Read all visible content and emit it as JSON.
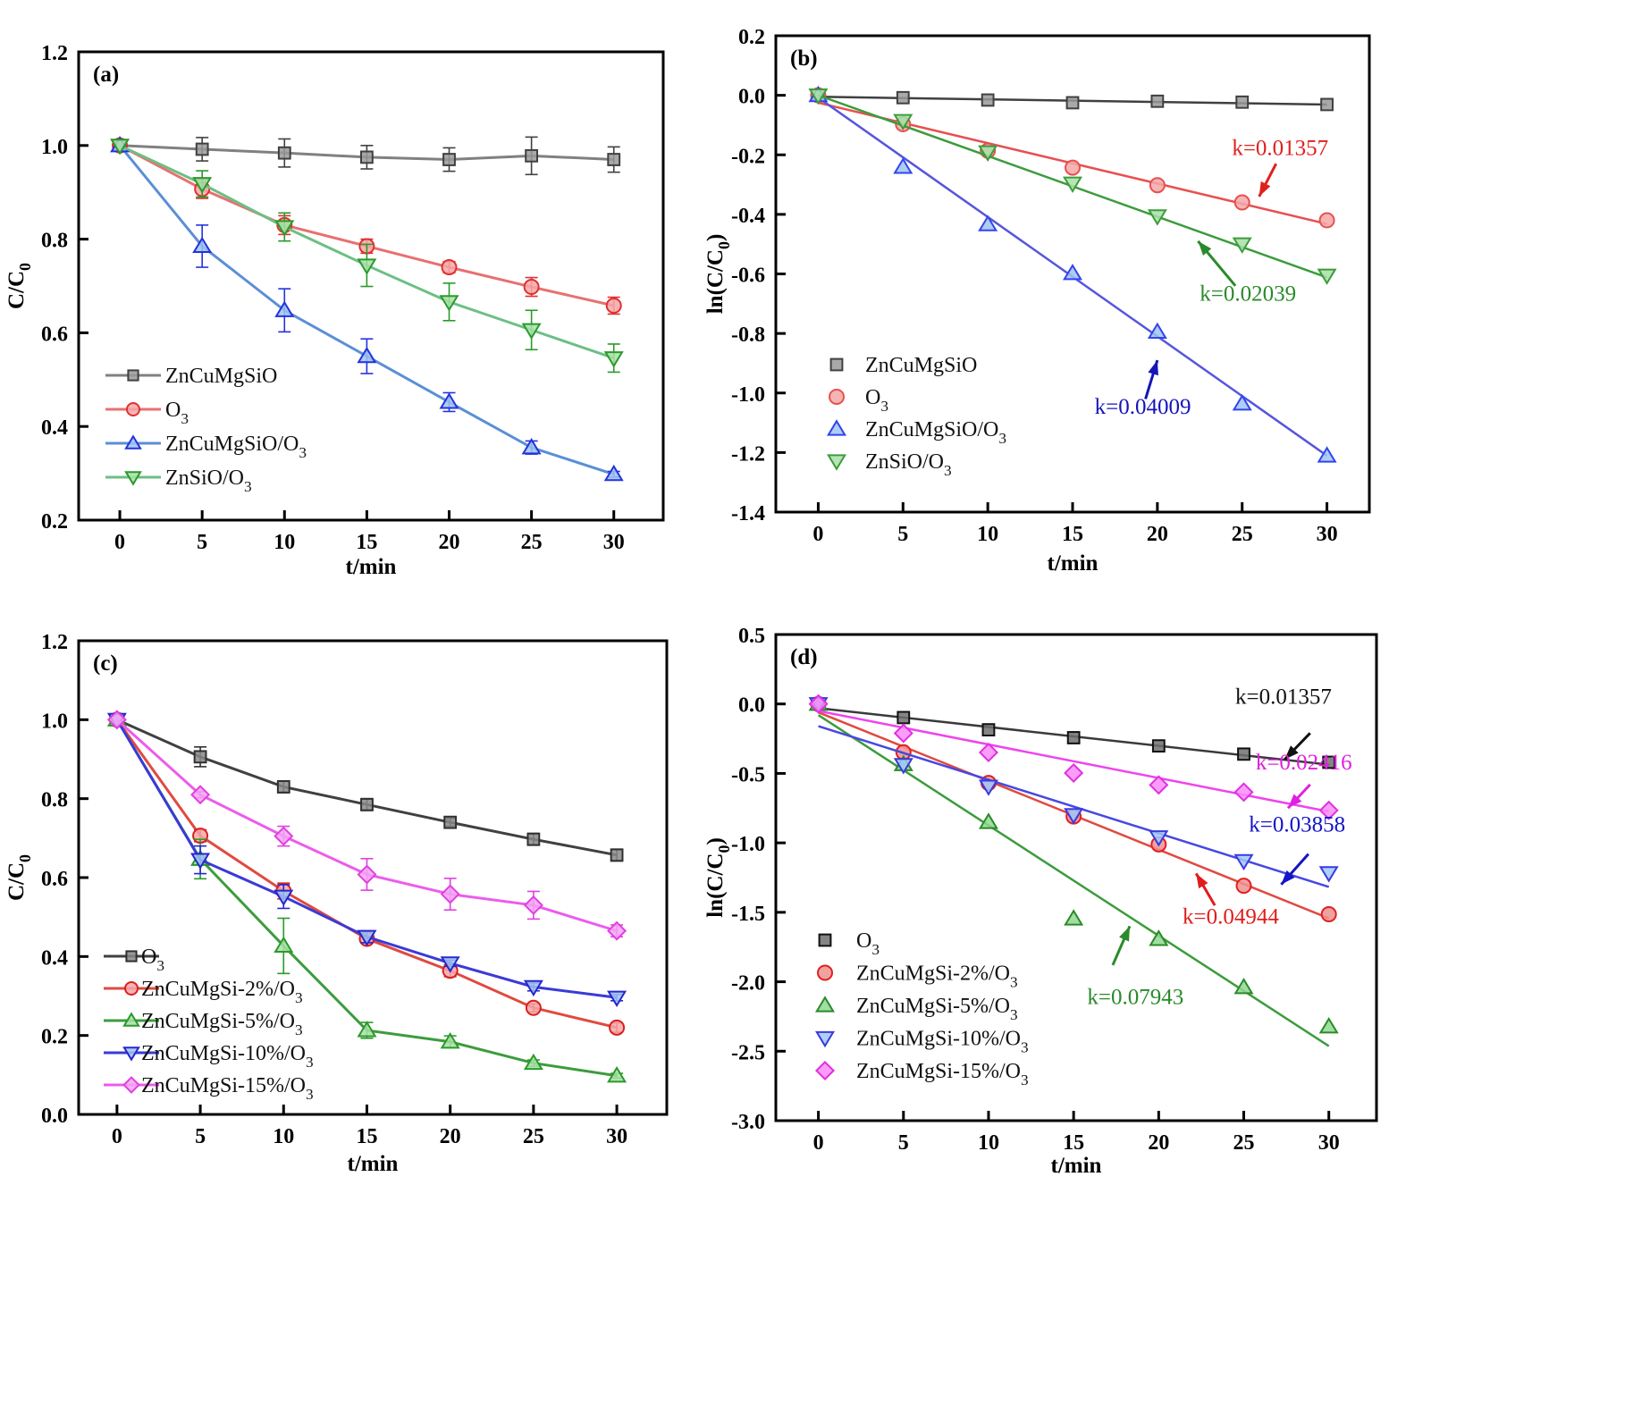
{
  "chart_data": [
    {
      "id": "a",
      "type": "line",
      "panel_label": "(a)",
      "title": "",
      "xlabel": "t/min",
      "ylabel": "C/C0",
      "ylabel_main": "C/C",
      "ylabel_sub": "0",
      "xlim": [
        -2.5,
        33
      ],
      "ylim": [
        0.2,
        1.2
      ],
      "xticks": [
        0,
        5,
        10,
        15,
        20,
        25,
        30
      ],
      "xtick_labels": [
        "0",
        "5",
        "10",
        "15",
        "20",
        "25",
        "30"
      ],
      "yticks": [
        0.2,
        0.4,
        0.6,
        0.8,
        1.0,
        1.2
      ],
      "ytick_labels": [
        "0.2",
        "0.4",
        "0.6",
        "0.8",
        "1.0",
        "1.2"
      ],
      "grid": false,
      "legend_position": "bottom-left",
      "legend_style": "line-marker",
      "x": [
        0,
        5,
        10,
        15,
        20,
        25,
        30
      ],
      "series": [
        {
          "name": "ZnCuMgSiO",
          "label_main": "ZnCuMgSiO",
          "label_sub": "",
          "marker": "square",
          "line_color": "#808080",
          "edge_color": "#404040",
          "fill_color": "#9a9a9a",
          "values": [
            1.0,
            0.992,
            0.984,
            0.975,
            0.97,
            0.978,
            0.97
          ],
          "errors": [
            0,
            0.025,
            0.03,
            0.025,
            0.025,
            0.04,
            0.027
          ]
        },
        {
          "name": "O3",
          "label_main": "O",
          "label_sub": "3",
          "marker": "circle",
          "line_color": "#e87070",
          "edge_color": "#e03030",
          "fill_color": "#f4a8a8",
          "values": [
            1.0,
            0.907,
            0.83,
            0.785,
            0.74,
            0.698,
            0.658
          ],
          "errors": [
            0,
            0.02,
            0.02,
            0.015,
            0.012,
            0.02,
            0.018
          ]
        },
        {
          "name": "ZnCuMgSiO/O3",
          "label_main": "ZnCuMgSiO/O",
          "label_sub": "3",
          "marker": "triangle-up",
          "line_color": "#5b8fd6",
          "edge_color": "#2233dd",
          "fill_color": "#a0c4f0",
          "values": [
            1.0,
            0.785,
            0.648,
            0.55,
            0.452,
            0.355,
            0.298
          ],
          "errors": [
            0,
            0.045,
            0.046,
            0.037,
            0.02,
            0.014,
            0.006
          ]
        },
        {
          "name": "ZnSiO/O3",
          "label_main": "ZnSiO/O",
          "label_sub": "3",
          "marker": "triangle-down",
          "line_color": "#6cbf84",
          "edge_color": "#2a9a2a",
          "fill_color": "#a8e0a8",
          "values": [
            1.0,
            0.918,
            0.826,
            0.744,
            0.666,
            0.606,
            0.546
          ],
          "errors": [
            0,
            0.028,
            0.03,
            0.045,
            0.04,
            0.042,
            0.03
          ]
        }
      ]
    },
    {
      "id": "b",
      "type": "scatter",
      "panel_label": "(b)",
      "title": "",
      "xlabel": "t/min",
      "ylabel": "ln(C/C0)",
      "ylabel_main": "ln(C/C",
      "ylabel_sub": "0",
      "ylabel_tail": ")",
      "xlim": [
        -2.5,
        32.5
      ],
      "ylim": [
        -1.4,
        0.2
      ],
      "xticks": [
        0,
        5,
        10,
        15,
        20,
        25,
        30
      ],
      "xtick_labels": [
        "0",
        "5",
        "10",
        "15",
        "20",
        "25",
        "30"
      ],
      "yticks": [
        -1.4,
        -1.2,
        -1.0,
        -0.8,
        -0.6,
        -0.4,
        -0.2,
        0.0,
        0.2
      ],
      "ytick_labels": [
        "-1.4",
        "-1.2",
        "-1.0",
        "-0.8",
        "-0.6",
        "-0.4",
        "-0.2",
        "0.0",
        "0.2"
      ],
      "grid": false,
      "legend_position": "bottom-left",
      "legend_style": "marker-only",
      "x": [
        0,
        5,
        10,
        15,
        20,
        25,
        30
      ],
      "series": [
        {
          "name": "ZnCuMgSiO",
          "label_main": "ZnCuMgSiO",
          "label_sub": "",
          "marker": "square",
          "line_color": "#404040",
          "edge_color": "#404040",
          "fill_color": "#9a9a9a",
          "values": [
            0.0,
            -0.008,
            -0.016,
            -0.025,
            -0.02,
            -0.023,
            -0.031
          ],
          "fit": {
            "intercept": -0.005,
            "slope": -0.00087
          }
        },
        {
          "name": "O3",
          "label_main": "O",
          "label_sub": "3",
          "marker": "circle",
          "line_color": "#e85050",
          "edge_color": "#e85050",
          "fill_color": "#f4a8a8",
          "values": [
            0.0,
            -0.097,
            -0.186,
            -0.243,
            -0.302,
            -0.36,
            -0.42
          ],
          "fit": {
            "intercept": -0.025,
            "slope": -0.01357
          }
        },
        {
          "name": "ZnCuMgSiO/O3",
          "label_main": "ZnCuMgSiO/O",
          "label_sub": "3",
          "marker": "triangle-up",
          "line_color": "#5555dd",
          "edge_color": "#3344ee",
          "fill_color": "#a0c4f0",
          "values": [
            0.0,
            -0.241,
            -0.434,
            -0.598,
            -0.795,
            -1.036,
            -1.211
          ],
          "fit": {
            "intercept": -0.008,
            "slope": -0.04009
          }
        },
        {
          "name": "ZnSiO/O3",
          "label_main": "ZnSiO/O",
          "label_sub": "3",
          "marker": "triangle-down",
          "line_color": "#3c9c3c",
          "edge_color": "#3c9c3c",
          "fill_color": "#a8e0a8",
          "values": [
            0.0,
            -0.086,
            -0.191,
            -0.296,
            -0.406,
            -0.5,
            -0.605
          ],
          "fit": {
            "intercept": 0.0,
            "slope": -0.02039
          }
        }
      ],
      "annotations": [
        {
          "text": "k=0.01357",
          "color": "#e0201c",
          "x": 24.4,
          "y": -0.2,
          "arrow_from": [
            27.0,
            -0.23
          ],
          "arrow_to": [
            26.0,
            -0.34
          ]
        },
        {
          "text": "k=0.02039",
          "color": "#2a8a2a",
          "x": 22.5,
          "y": -0.69,
          "arrow_from": [
            24.6,
            -0.64
          ],
          "arrow_to": [
            22.4,
            -0.49
          ]
        },
        {
          "text": "k=0.04009",
          "color": "#1515b8",
          "x": 16.3,
          "y": -1.07,
          "arrow_from": [
            19.3,
            -1.02
          ],
          "arrow_to": [
            20.0,
            -0.89
          ]
        }
      ]
    },
    {
      "id": "c",
      "type": "line",
      "panel_label": "(c)",
      "title": "",
      "xlabel": "t/min",
      "ylabel": "C/C0",
      "ylabel_main": "C/C",
      "ylabel_sub": "0",
      "xlim": [
        -2.3,
        33
      ],
      "ylim": [
        0.0,
        1.2
      ],
      "xticks": [
        0,
        5,
        10,
        15,
        20,
        25,
        30
      ],
      "xtick_labels": [
        "0",
        "5",
        "10",
        "15",
        "20",
        "25",
        "30"
      ],
      "yticks": [
        0.0,
        0.2,
        0.4,
        0.6,
        0.8,
        1.0,
        1.2
      ],
      "ytick_labels": [
        "0.0",
        "0.2",
        "0.4",
        "0.6",
        "0.8",
        "1.0",
        "1.2"
      ],
      "grid": false,
      "legend_position": "bottom-left",
      "legend_style": "line-marker",
      "x": [
        0,
        5,
        10,
        15,
        20,
        25,
        30
      ],
      "series": [
        {
          "name": "O3",
          "label_main": "O",
          "label_sub": "3",
          "marker": "square",
          "line_color": "#404040",
          "edge_color": "#303030",
          "fill_color": "#8a8a8a",
          "values": [
            1.0,
            0.906,
            0.83,
            0.785,
            0.74,
            0.697,
            0.657
          ],
          "errors": [
            0,
            0.025,
            0.015,
            0.015,
            0.01,
            0.015,
            0.015
          ]
        },
        {
          "name": "ZnCuMgSi-2%/O3",
          "label_main": "ZnCuMgSi-2%/O",
          "label_sub": "3",
          "marker": "circle",
          "line_color": "#e04a40",
          "edge_color": "#d82020",
          "fill_color": "#f4a8a8",
          "values": [
            1.0,
            0.706,
            0.566,
            0.445,
            0.364,
            0.27,
            0.22
          ],
          "errors": [
            0,
            0.015,
            0.02,
            0.01,
            0.015,
            0.01,
            0.012
          ]
        },
        {
          "name": "ZnCuMgSi-5%/O3",
          "label_main": "ZnCuMgSi-5%/O",
          "label_sub": "3",
          "marker": "triangle-up",
          "line_color": "#3c9c3c",
          "edge_color": "#2a9a2a",
          "fill_color": "#a8e0a8",
          "values": [
            1.0,
            0.647,
            0.427,
            0.213,
            0.184,
            0.13,
            0.098
          ],
          "errors": [
            0,
            0.05,
            0.07,
            0.02,
            0.015,
            0.008,
            0.006
          ]
        },
        {
          "name": "ZnCuMgSi-10%/O3",
          "label_main": "ZnCuMgSi-10%/O",
          "label_sub": "3",
          "marker": "triangle-down",
          "line_color": "#3a3ad8",
          "edge_color": "#2626d0",
          "fill_color": "#a0c4f0",
          "values": [
            1.0,
            0.645,
            0.552,
            0.45,
            0.383,
            0.323,
            0.296
          ],
          "errors": [
            0,
            0.035,
            0.03,
            0.015,
            0.008,
            0.01,
            0.008
          ]
        },
        {
          "name": "ZnCuMgSi-15%/O3",
          "label_main": "ZnCuMgSi-15%/O",
          "label_sub": "3",
          "marker": "diamond",
          "line_color": "#ec5cec",
          "edge_color": "#e040e0",
          "fill_color": "#f4a4f4",
          "values": [
            1.0,
            0.81,
            0.705,
            0.608,
            0.558,
            0.53,
            0.465
          ],
          "errors": [
            0,
            0.008,
            0.025,
            0.04,
            0.04,
            0.035,
            0.015
          ]
        }
      ]
    },
    {
      "id": "d",
      "type": "scatter",
      "panel_label": "(d)",
      "title": "",
      "xlabel": "t/min",
      "ylabel": "ln(C/C0)",
      "ylabel_main": "ln(C/C",
      "ylabel_sub": "0",
      "ylabel_tail": ")",
      "xlim": [
        -2.5,
        32.8
      ],
      "ylim": [
        -3.0,
        0.5
      ],
      "xticks": [
        0,
        5,
        10,
        15,
        20,
        25,
        30
      ],
      "xtick_labels": [
        "0",
        "5",
        "10",
        "15",
        "20",
        "25",
        "30"
      ],
      "yticks": [
        -3.0,
        -2.5,
        -2.0,
        -1.5,
        -1.0,
        -0.5,
        0.0,
        0.5
      ],
      "ytick_labels": [
        "-3.0",
        "-2.5",
        "-2.0",
        "-1.5",
        "-1.0",
        "-0.5",
        "0.0",
        "0.5"
      ],
      "grid": false,
      "legend_position": "bottom-left",
      "legend_style": "marker-only",
      "x": [
        0,
        5,
        10,
        15,
        20,
        25,
        30
      ],
      "series": [
        {
          "name": "O3",
          "label_main": "O",
          "label_sub": "3",
          "marker": "square",
          "line_color": "#3a3a3a",
          "edge_color": "#111111",
          "fill_color": "#707070",
          "values": [
            0.0,
            -0.098,
            -0.186,
            -0.243,
            -0.302,
            -0.361,
            -0.42
          ],
          "fit": {
            "intercept": -0.03,
            "slope": -0.01357
          }
        },
        {
          "name": "ZnCuMgSi-2%/O3",
          "label_main": "ZnCuMgSi-2%/O",
          "label_sub": "3",
          "marker": "circle",
          "line_color": "#e04a40",
          "edge_color": "#e02020",
          "fill_color": "#f09090",
          "values": [
            0.0,
            -0.348,
            -0.569,
            -0.81,
            -1.011,
            -1.309,
            -1.514
          ],
          "fit": {
            "intercept": -0.06,
            "slope": -0.04944
          }
        },
        {
          "name": "ZnCuMgSi-5%/O3",
          "label_main": "ZnCuMgSi-5%/O",
          "label_sub": "3",
          "marker": "triangle-up",
          "line_color": "#3c9c3c",
          "edge_color": "#2a8a2a",
          "fill_color": "#90d890",
          "values": [
            0.0,
            -0.435,
            -0.851,
            -1.546,
            -1.693,
            -2.04,
            -2.323
          ],
          "fit": {
            "intercept": -0.08,
            "slope": -0.07943
          }
        },
        {
          "name": "ZnCuMgSi-10%/O3",
          "label_main": "ZnCuMgSi-10%/O",
          "label_sub": "3",
          "marker": "triangle-down",
          "line_color": "#4848e0",
          "edge_color": "#3a3ae0",
          "fill_color": "#a0c8f8",
          "values": [
            0.0,
            -0.438,
            -0.594,
            -0.799,
            -0.959,
            -1.13,
            -1.217
          ],
          "fit": {
            "intercept": -0.16,
            "slope": -0.03858
          }
        },
        {
          "name": "ZnCuMgSi-15%/O3",
          "label_main": "ZnCuMgSi-15%/O",
          "label_sub": "3",
          "marker": "diamond",
          "line_color": "#ee44ee",
          "edge_color": "#e030e0",
          "fill_color": "#f88cf8",
          "values": [
            0.0,
            -0.211,
            -0.349,
            -0.497,
            -0.583,
            -0.635,
            -0.766
          ],
          "fit": {
            "intercept": -0.05,
            "slope": -0.02416
          }
        }
      ],
      "annotations": [
        {
          "text": "k=0.01357",
          "color": "#111111",
          "x": 24.5,
          "y": 0.0,
          "arrow_from": [
            28.9,
            -0.21
          ],
          "arrow_to": [
            27.4,
            -0.4
          ]
        },
        {
          "text": "k=0.02416",
          "color": "#e020e0",
          "x": 25.7,
          "y": -0.47,
          "arrow_from": [
            28.9,
            -0.58
          ],
          "arrow_to": [
            27.6,
            -0.75
          ]
        },
        {
          "text": "k=0.03858",
          "color": "#1414c8",
          "x": 25.3,
          "y": -0.92,
          "arrow_from": [
            28.8,
            -1.08
          ],
          "arrow_to": [
            27.2,
            -1.3
          ]
        },
        {
          "text": "k=0.04944",
          "color": "#e01c1c",
          "x": 21.4,
          "y": -1.58,
          "arrow_from": [
            23.3,
            -1.45
          ],
          "arrow_to": [
            22.2,
            -1.22
          ]
        },
        {
          "text": "k=0.07943",
          "color": "#2a8a2a",
          "x": 15.8,
          "y": -2.16,
          "arrow_from": [
            17.3,
            -1.88
          ],
          "arrow_to": [
            18.3,
            -1.6
          ]
        }
      ]
    }
  ]
}
